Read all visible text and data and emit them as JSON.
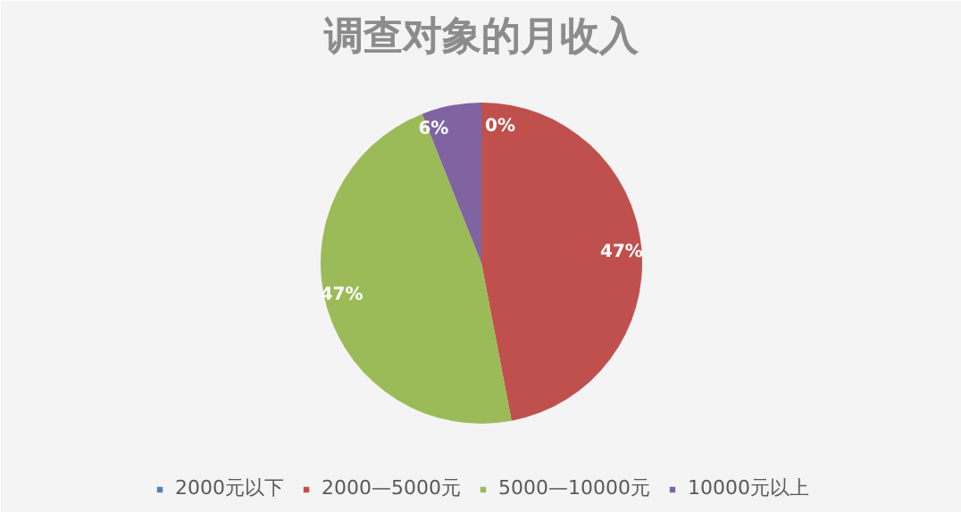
{
  "chart_data": {
    "type": "pie",
    "title": "调查对象的月收入",
    "categories": [
      "2000元以下",
      "2000—5000元",
      "5000—10000元",
      "10000元以上"
    ],
    "values": [
      0,
      47,
      47,
      6
    ],
    "colors": [
      "#4f81bd",
      "#c0504d",
      "#9bbb59",
      "#8064a2"
    ],
    "value_labels": [
      "0%",
      "47%",
      "47%",
      "6%"
    ],
    "legend": "bottom"
  }
}
